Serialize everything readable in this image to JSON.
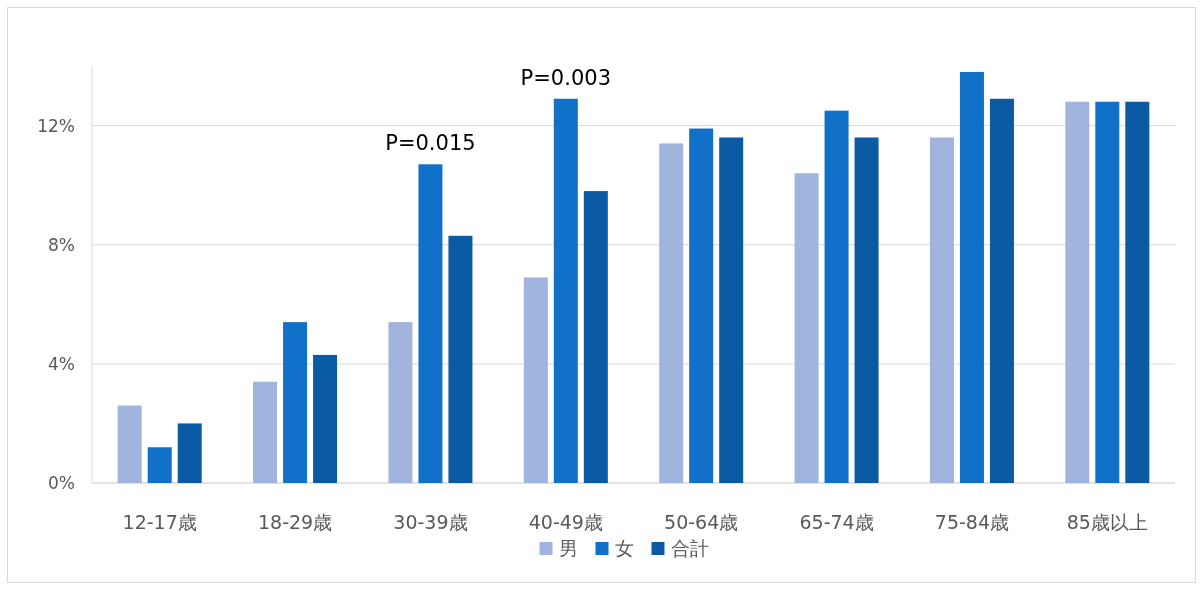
{
  "chart_data": {
    "type": "bar",
    "categories": [
      "12-17歳",
      "18-29歳",
      "30-39歳",
      "40-49歳",
      "50-64歳",
      "65-74歳",
      "75-84歳",
      "85歳以上"
    ],
    "series": [
      {
        "name": "男",
        "color": "#a1b4dd",
        "values": [
          2.6,
          3.4,
          5.4,
          6.9,
          11.4,
          10.4,
          11.6,
          12.8
        ]
      },
      {
        "name": "女",
        "color": "#1170c8",
        "values": [
          1.2,
          5.4,
          10.7,
          12.9,
          11.9,
          12.5,
          13.8,
          12.8
        ]
      },
      {
        "name": "合計",
        "color": "#0b5aa4",
        "values": [
          2.0,
          4.3,
          8.3,
          9.8,
          11.6,
          11.6,
          12.9,
          12.8
        ]
      }
    ],
    "yticks": [
      {
        "value": 0,
        "label": "0%"
      },
      {
        "value": 4,
        "label": "4%"
      },
      {
        "value": 8,
        "label": "8%"
      },
      {
        "value": 12,
        "label": "12%"
      }
    ],
    "ylim": [
      0,
      14
    ],
    "grid": "y",
    "legend": "bottom",
    "annotations": [
      {
        "text": "P=0.015",
        "x": "30-39歳",
        "y": 10.7
      },
      {
        "text": "P=0.003",
        "x": "40-49歳",
        "y": 12.9
      }
    ]
  }
}
